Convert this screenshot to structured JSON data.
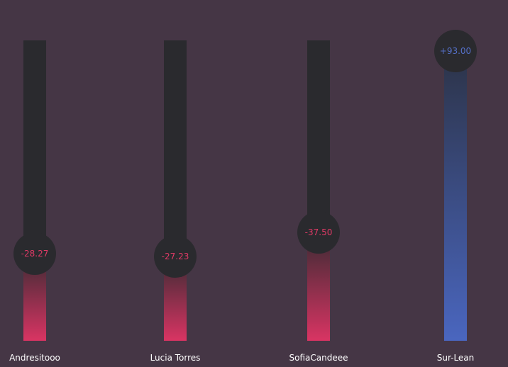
{
  "colors": {
    "background": "#453645",
    "track": "#2a2a2e",
    "negative_accent": "#d93463",
    "positive_accent": "#4a66bf",
    "label_text": "#ffffff"
  },
  "scale": {
    "min": -100,
    "max": 100
  },
  "sliders": [
    {
      "name": "Andresitooo",
      "value_label": "-28.27",
      "value": -28.27,
      "fill_fraction": 0.29
    },
    {
      "name": "Lucia Torres",
      "value_label": "-27.23",
      "value": -27.23,
      "fill_fraction": 0.28
    },
    {
      "name": "SofiaCandeee",
      "value_label": "-37.50",
      "value": -37.5,
      "fill_fraction": 0.36
    },
    {
      "name": "Sur-Lean",
      "value_label": "+93.00",
      "value": 93.0,
      "fill_fraction": 0.965
    }
  ]
}
